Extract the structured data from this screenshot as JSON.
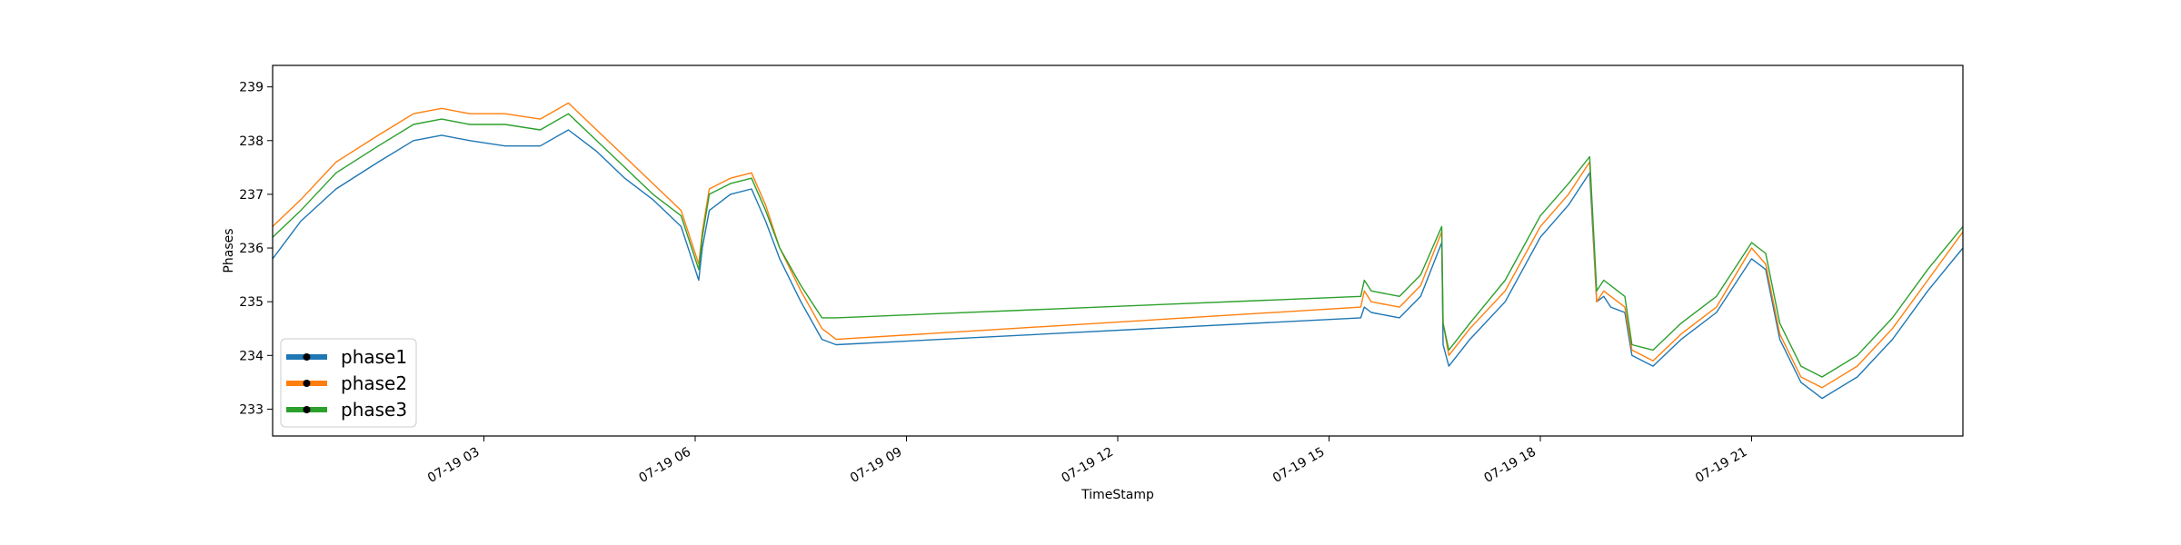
{
  "chart_data": {
    "type": "line",
    "title": "",
    "xlabel": "TimeStamp",
    "ylabel": "Phases",
    "x_unit": "hours",
    "xlim": [
      0.0,
      24.0
    ],
    "ylim": [
      232.5,
      239.4
    ],
    "x_ticks": [
      {
        "value": 3,
        "label": "07-19 03"
      },
      {
        "value": 6,
        "label": "07-19 06"
      },
      {
        "value": 9,
        "label": "07-19 09"
      },
      {
        "value": 12,
        "label": "07-19 12"
      },
      {
        "value": 15,
        "label": "07-19 15"
      },
      {
        "value": 18,
        "label": "07-19 18"
      },
      {
        "value": 21,
        "label": "07-19 21"
      }
    ],
    "y_ticks": [
      233,
      234,
      235,
      236,
      237,
      238,
      239
    ],
    "grid": false,
    "legend": {
      "position": "lower-left"
    },
    "series": [
      {
        "name": "phase1",
        "color": "#1f77b4",
        "x": [
          0.0,
          0.4,
          0.9,
          1.5,
          2.0,
          2.4,
          2.8,
          3.3,
          3.8,
          4.2,
          4.6,
          5.0,
          5.4,
          5.8,
          6.05,
          6.1,
          6.2,
          6.5,
          6.8,
          7.0,
          7.2,
          7.5,
          7.8,
          8.0,
          15.45,
          15.5,
          15.6,
          16.0,
          16.3,
          16.6,
          16.62,
          16.7,
          17.0,
          17.5,
          18.0,
          18.4,
          18.7,
          18.8,
          18.9,
          19.0,
          19.2,
          19.3,
          19.6,
          20.0,
          20.5,
          21.0,
          21.2,
          21.4,
          21.7,
          22.0,
          22.5,
          23.0,
          23.5,
          24.0
        ],
        "y": [
          235.8,
          236.5,
          237.1,
          237.6,
          238.0,
          238.1,
          238.0,
          237.9,
          237.9,
          238.2,
          237.8,
          237.3,
          236.9,
          236.4,
          235.4,
          236.0,
          236.7,
          237.0,
          237.1,
          236.5,
          235.8,
          235.0,
          234.3,
          234.2,
          234.7,
          234.9,
          234.8,
          234.7,
          235.1,
          236.1,
          234.2,
          233.8,
          234.3,
          235.0,
          236.2,
          236.8,
          237.4,
          235.0,
          235.1,
          234.9,
          234.8,
          234.0,
          233.8,
          234.3,
          234.8,
          235.8,
          235.6,
          234.3,
          233.5,
          233.2,
          233.6,
          234.3,
          235.2,
          236.0
        ]
      },
      {
        "name": "phase2",
        "color": "#ff7f0e",
        "x": [
          0.0,
          0.4,
          0.9,
          1.5,
          2.0,
          2.4,
          2.8,
          3.3,
          3.8,
          4.2,
          4.6,
          5.0,
          5.4,
          5.8,
          6.05,
          6.1,
          6.2,
          6.5,
          6.8,
          7.0,
          7.2,
          7.5,
          7.8,
          8.0,
          15.45,
          15.5,
          15.6,
          16.0,
          16.3,
          16.6,
          16.62,
          16.7,
          17.0,
          17.5,
          18.0,
          18.4,
          18.7,
          18.8,
          18.9,
          19.0,
          19.2,
          19.3,
          19.6,
          20.0,
          20.5,
          21.0,
          21.2,
          21.4,
          21.7,
          22.0,
          22.5,
          23.0,
          23.5,
          24.0
        ],
        "y": [
          236.4,
          236.9,
          237.6,
          238.1,
          238.5,
          238.6,
          238.5,
          238.5,
          238.4,
          238.7,
          238.2,
          237.7,
          237.2,
          236.7,
          235.7,
          236.3,
          237.1,
          237.3,
          237.4,
          236.8,
          236.0,
          235.2,
          234.5,
          234.3,
          234.9,
          235.2,
          235.0,
          234.9,
          235.3,
          236.3,
          234.6,
          234.0,
          234.5,
          235.2,
          236.4,
          237.0,
          237.6,
          235.0,
          235.2,
          235.1,
          234.9,
          234.1,
          233.9,
          234.4,
          234.9,
          236.0,
          235.7,
          234.4,
          233.6,
          233.4,
          233.8,
          234.5,
          235.4,
          236.3
        ]
      },
      {
        "name": "phase3",
        "color": "#2ca02c",
        "x": [
          0.0,
          0.4,
          0.9,
          1.5,
          2.0,
          2.4,
          2.8,
          3.3,
          3.8,
          4.2,
          4.6,
          5.0,
          5.4,
          5.8,
          6.05,
          6.1,
          6.2,
          6.5,
          6.8,
          7.0,
          7.2,
          7.5,
          7.8,
          8.0,
          15.45,
          15.5,
          15.6,
          16.0,
          16.3,
          16.6,
          16.62,
          16.7,
          17.0,
          17.5,
          18.0,
          18.4,
          18.7,
          18.8,
          18.9,
          19.0,
          19.2,
          19.3,
          19.6,
          20.0,
          20.5,
          21.0,
          21.2,
          21.4,
          21.7,
          22.0,
          22.5,
          23.0,
          23.5,
          24.0
        ],
        "y": [
          236.2,
          236.7,
          237.4,
          237.9,
          238.3,
          238.4,
          238.3,
          238.3,
          238.2,
          238.5,
          238.0,
          237.5,
          237.0,
          236.6,
          235.6,
          236.2,
          237.0,
          237.2,
          237.3,
          236.7,
          236.0,
          235.3,
          234.7,
          234.7,
          235.1,
          235.4,
          235.2,
          235.1,
          235.5,
          236.4,
          234.6,
          234.1,
          234.6,
          235.4,
          236.6,
          237.2,
          237.7,
          235.2,
          235.4,
          235.3,
          235.1,
          234.2,
          234.1,
          234.6,
          235.1,
          236.1,
          235.9,
          234.6,
          233.8,
          233.6,
          234.0,
          234.7,
          235.6,
          236.4
        ]
      }
    ]
  }
}
